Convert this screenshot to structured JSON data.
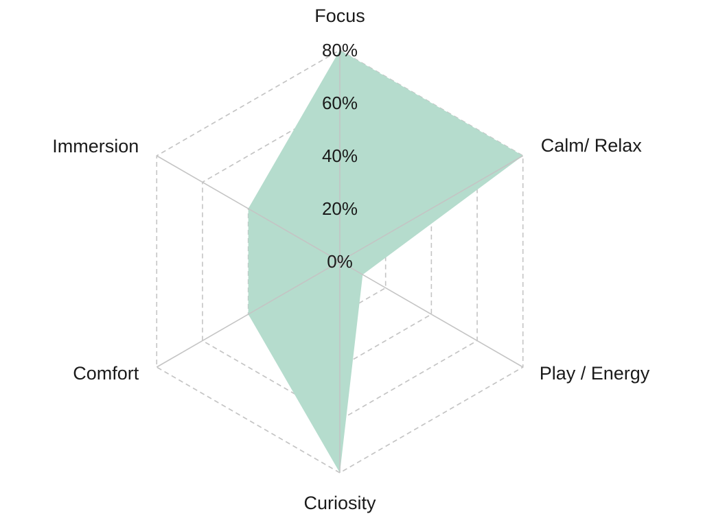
{
  "chart_data": {
    "type": "radar",
    "axes": [
      "Focus",
      "Calm/ Relax",
      "Play / Energy",
      "Curiosity",
      "Comfort",
      "Immersion"
    ],
    "series": [
      {
        "values": [
          80,
          80,
          10,
          80,
          40,
          40
        ]
      }
    ],
    "rlim": [
      0,
      80
    ],
    "ticks": [
      0,
      20,
      40,
      60,
      80
    ],
    "tick_labels": [
      "0%",
      "20%",
      "40%",
      "60%",
      "80%"
    ],
    "grid": true,
    "colors": {
      "fill": "#b5dccd",
      "grid": "#c4c4c4",
      "text": "#1a1a1a"
    }
  }
}
